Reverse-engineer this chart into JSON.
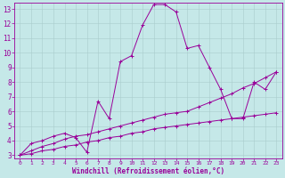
{
  "xlabel": "Windchill (Refroidissement éolien,°C)",
  "xlim": [
    -0.5,
    23.5
  ],
  "ylim": [
    2.8,
    13.4
  ],
  "xticks": [
    0,
    1,
    2,
    3,
    4,
    5,
    6,
    7,
    8,
    9,
    10,
    11,
    12,
    13,
    14,
    15,
    16,
    17,
    18,
    19,
    20,
    21,
    22,
    23
  ],
  "yticks": [
    3,
    4,
    5,
    6,
    7,
    8,
    9,
    10,
    11,
    12,
    13
  ],
  "background_color": "#c5e8e8",
  "grid_color": "#aacccc",
  "line_color": "#990099",
  "line1_x": [
    0,
    1,
    2,
    3,
    4,
    5,
    6,
    7,
    8,
    9,
    10,
    11,
    12,
    13,
    14,
    15,
    16,
    17,
    18,
    19,
    20,
    21,
    22,
    23
  ],
  "line1_y": [
    3.0,
    3.8,
    4.0,
    4.3,
    4.5,
    4.2,
    3.2,
    6.7,
    5.5,
    9.4,
    9.8,
    11.9,
    13.3,
    13.3,
    12.8,
    10.3,
    10.5,
    9.0,
    7.5,
    5.5,
    5.5,
    8.0,
    7.5,
    8.7
  ],
  "line2_x": [
    0,
    1,
    2,
    3,
    4,
    5,
    6,
    7,
    8,
    9,
    10,
    11,
    12,
    13,
    14,
    15,
    16,
    17,
    18,
    19,
    20,
    21,
    22,
    23
  ],
  "line2_y": [
    3.0,
    3.3,
    3.6,
    3.8,
    4.1,
    4.3,
    4.4,
    4.6,
    4.8,
    5.0,
    5.2,
    5.4,
    5.6,
    5.8,
    5.9,
    6.0,
    6.3,
    6.6,
    6.9,
    7.2,
    7.6,
    7.9,
    8.3,
    8.7
  ],
  "line3_x": [
    0,
    1,
    2,
    3,
    4,
    5,
    6,
    7,
    8,
    9,
    10,
    11,
    12,
    13,
    14,
    15,
    16,
    17,
    18,
    19,
    20,
    21,
    22,
    23
  ],
  "line3_y": [
    3.0,
    3.1,
    3.3,
    3.4,
    3.6,
    3.7,
    3.9,
    4.0,
    4.2,
    4.3,
    4.5,
    4.6,
    4.8,
    4.9,
    5.0,
    5.1,
    5.2,
    5.3,
    5.4,
    5.5,
    5.6,
    5.7,
    5.8,
    5.9
  ],
  "tick_fontsize_x": 4.5,
  "tick_fontsize_y": 5.5,
  "xlabel_fontsize": 5.5,
  "linewidth": 0.7,
  "markersize": 2.5
}
